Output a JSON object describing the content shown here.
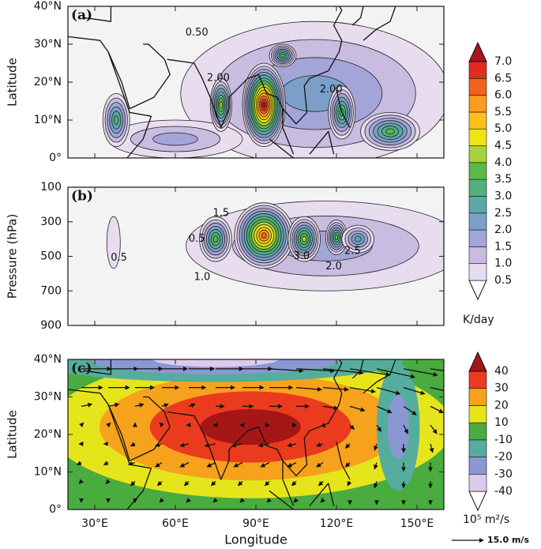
{
  "chart_data": [
    {
      "type": "contour",
      "label": "(a)",
      "ylabel": "Latitude",
      "xlim": [
        20,
        160
      ],
      "xticks": [
        30,
        60,
        90,
        120,
        150
      ],
      "ylim": [
        0,
        40
      ],
      "yticks": [
        {
          "value": 0,
          "label": "0°"
        },
        {
          "value": 10,
          "label": "10°N"
        },
        {
          "value": 20,
          "label": "20°N"
        },
        {
          "value": 30,
          "label": "30°N"
        },
        {
          "value": 40,
          "label": "40°N"
        }
      ],
      "levels": [
        {
          "value": 0.5,
          "label": "0.5"
        },
        {
          "value": 1,
          "label": "1.0"
        },
        {
          "value": 1.5,
          "label": "1.5"
        },
        {
          "value": 2,
          "label": "2.0"
        },
        {
          "value": 2.5,
          "label": "2.5"
        },
        {
          "value": 3,
          "label": "3.0"
        },
        {
          "value": 3.5,
          "label": "3.5"
        },
        {
          "value": 4,
          "label": "4.0"
        },
        {
          "value": 4.5,
          "label": "4.5"
        },
        {
          "value": 5,
          "label": "5.0"
        },
        {
          "value": 5.5,
          "label": "5.5"
        },
        {
          "value": 6,
          "label": "6.0"
        },
        {
          "value": 6.5,
          "label": "6.5"
        },
        {
          "value": 7,
          "label": "7.0"
        }
      ],
      "colors": [
        "#ffffff",
        "#e8ddef",
        "#c8bce0",
        "#a3a5d8",
        "#7b9fc8",
        "#5aa9a6",
        "#4fb27e",
        "#5bb948",
        "#a9d13a",
        "#eee512",
        "#fcc018",
        "#fb9a1e",
        "#f4611f",
        "#e42a1f",
        "#a8141a"
      ],
      "unit": "K/day",
      "spots": [
        {
          "lon": 112,
          "lat": 17,
          "value": 2,
          "width": 100,
          "height": 38
        },
        {
          "lon": 60,
          "lat": 5,
          "value": 1.5,
          "width": 50,
          "height": 10
        },
        {
          "lon": 38,
          "lat": 10,
          "value": 3,
          "width": 10,
          "height": 14
        },
        {
          "lon": 93,
          "lat": 14,
          "value": 7,
          "width": 16,
          "height": 22
        },
        {
          "lon": 77,
          "lat": 14,
          "value": 4,
          "width": 8,
          "height": 14
        },
        {
          "lon": 100,
          "lat": 27,
          "value": 3.5,
          "width": 10,
          "height": 6
        },
        {
          "lon": 122,
          "lat": 12,
          "value": 3.5,
          "width": 10,
          "height": 14
        },
        {
          "lon": 140,
          "lat": 7,
          "value": 3.5,
          "width": 22,
          "height": 10
        }
      ],
      "annotations": [
        {
          "text": "0.50",
          "x": 68,
          "y": 33
        },
        {
          "text": "2.00",
          "x": 76,
          "y": 21
        },
        {
          "text": "2.00",
          "x": 118,
          "y": 18
        }
      ]
    },
    {
      "type": "contour",
      "label": "(b)",
      "ylabel": "Pressure (hPa)",
      "xlim": [
        20,
        160
      ],
      "xticks": [
        30,
        60,
        90,
        120,
        150
      ],
      "ylim": [
        900,
        100
      ],
      "yticks": [
        100,
        300,
        500,
        700,
        900
      ],
      "spots": [
        {
          "lon": 116,
          "lat": 440,
          "value": 1.5,
          "width": 104,
          "height": 520
        },
        {
          "lon": 37,
          "lat": 420,
          "value": 0.5,
          "width": 5,
          "height": 300
        },
        {
          "lon": 75,
          "lat": 400,
          "value": 3.5,
          "width": 12,
          "height": 260
        },
        {
          "lon": 93,
          "lat": 380,
          "value": 6,
          "width": 22,
          "height": 380
        },
        {
          "lon": 108,
          "lat": 400,
          "value": 4,
          "width": 12,
          "height": 260
        },
        {
          "lon": 120,
          "lat": 390,
          "value": 3.5,
          "width": 8,
          "height": 200
        },
        {
          "lon": 128,
          "lat": 400,
          "value": 2.5,
          "width": 12,
          "height": 160
        }
      ],
      "annotations": [
        {
          "text": "1.5",
          "x": 77,
          "y": 250
        },
        {
          "text": "0.5",
          "x": 68,
          "y": 400
        },
        {
          "text": "0.5",
          "x": 39,
          "y": 510
        },
        {
          "text": "3.0",
          "x": 107,
          "y": 500
        },
        {
          "text": "2.5",
          "x": 126,
          "y": 470
        },
        {
          "text": "2.0",
          "x": 119,
          "y": 560
        },
        {
          "text": "1.0",
          "x": 70,
          "y": 620
        }
      ]
    },
    {
      "type": "contour",
      "label": "(c)",
      "ylabel": "Latitude",
      "xlabel": "Longitude",
      "xlim": [
        20,
        160
      ],
      "xticks": [
        {
          "value": 30,
          "label": "30°E"
        },
        {
          "value": 60,
          "label": "60°E"
        },
        {
          "value": 90,
          "label": "90°E"
        },
        {
          "value": 120,
          "label": "120°E"
        },
        {
          "value": 150,
          "label": "150°E"
        }
      ],
      "ylim": [
        0,
        40
      ],
      "yticks": [
        {
          "value": 0,
          "label": "0°"
        },
        {
          "value": 10,
          "label": "10°N"
        },
        {
          "value": 20,
          "label": "20°N"
        },
        {
          "value": 30,
          "label": "30°N"
        },
        {
          "value": 40,
          "label": "40°N"
        }
      ],
      "levels": [
        -40,
        -30,
        -20,
        -10,
        10,
        20,
        30,
        40
      ],
      "colors": [
        "#ffffff",
        "#dccbea",
        "#8b97d3",
        "#55ad9d",
        "#4aab3f",
        "#e6e51c",
        "#f6a21d",
        "#eb3b1e",
        "#a51616"
      ],
      "unit": "10⁵ m²/s",
      "background": 0,
      "spots": [
        {
          "lon": 88,
          "lat": 22,
          "value": 40,
          "width": 150,
          "height": 38
        },
        {
          "lon": 75,
          "lat": 40,
          "value": -30,
          "width": 140,
          "height": 12
        },
        {
          "lon": 143,
          "lat": 22,
          "value": -20,
          "width": 16,
          "height": 34
        }
      ],
      "vectors": {
        "lons": [
          25,
          35,
          45,
          55,
          65,
          75,
          85,
          95,
          105,
          115,
          125,
          135,
          145,
          155
        ],
        "lats": [
          2.5,
          7.5,
          12.5,
          17.5,
          22.5,
          27.5,
          32.5,
          37.5
        ],
        "u": [
          [
            0,
            0,
            0,
            -1,
            -1,
            -1,
            -1,
            -1,
            -1,
            -1,
            0,
            0,
            0,
            0
          ],
          [
            -1,
            -1,
            -2,
            -2,
            -2,
            -2,
            -2,
            -2,
            -2,
            -2,
            -1,
            -1,
            0,
            0
          ],
          [
            -2,
            -2,
            -3,
            -3,
            -4,
            -4,
            -4,
            -4,
            -4,
            -3,
            -2,
            -1,
            0,
            0
          ],
          [
            -1,
            -2,
            -2,
            -3,
            -4,
            -5,
            -5,
            -5,
            -4,
            -3,
            -2,
            -1,
            0,
            1
          ],
          [
            1,
            1,
            0,
            -1,
            -1,
            -1,
            -1,
            0,
            0,
            1,
            2,
            2,
            2,
            3
          ],
          [
            5,
            5,
            4,
            3,
            3,
            4,
            5,
            6,
            6,
            7,
            7,
            7,
            6,
            6
          ],
          [
            10,
            10,
            9,
            8,
            8,
            9,
            10,
            11,
            12,
            12,
            12,
            11,
            10,
            9
          ],
          [
            14,
            14,
            13,
            12,
            12,
            13,
            14,
            16,
            18,
            19,
            19,
            18,
            16,
            14
          ]
        ],
        "v": [
          [
            -1,
            -1,
            -1,
            -1,
            -1,
            -1,
            -1,
            -1,
            -1,
            -1,
            -2,
            -2,
            -2,
            -2
          ],
          [
            -1,
            -1,
            -2,
            -2,
            -2,
            -2,
            -2,
            -2,
            -2,
            -2,
            -2,
            -3,
            -3,
            -3
          ],
          [
            -1,
            -1,
            -1,
            -2,
            -2,
            -2,
            -2,
            -2,
            -2,
            -2,
            -2,
            -3,
            -4,
            -4
          ],
          [
            0,
            0,
            -1,
            -1,
            -1,
            -1,
            -1,
            -1,
            -1,
            -1,
            -2,
            -3,
            -4,
            -4
          ],
          [
            1,
            1,
            1,
            1,
            0,
            0,
            0,
            0,
            0,
            -1,
            -2,
            -3,
            -4,
            -4
          ],
          [
            1,
            1,
            1,
            1,
            1,
            0,
            0,
            0,
            0,
            -1,
            -2,
            -3,
            -4,
            -3
          ],
          [
            0,
            0,
            0,
            0,
            0,
            0,
            0,
            0,
            -1,
            -1,
            -2,
            -3,
            -3,
            -2
          ],
          [
            0,
            0,
            0,
            0,
            0,
            0,
            0,
            -1,
            -1,
            -2,
            -3,
            -4,
            -3,
            -2
          ]
        ],
        "reference": {
          "value": 15,
          "label": "15.0 m/s"
        }
      }
    }
  ]
}
